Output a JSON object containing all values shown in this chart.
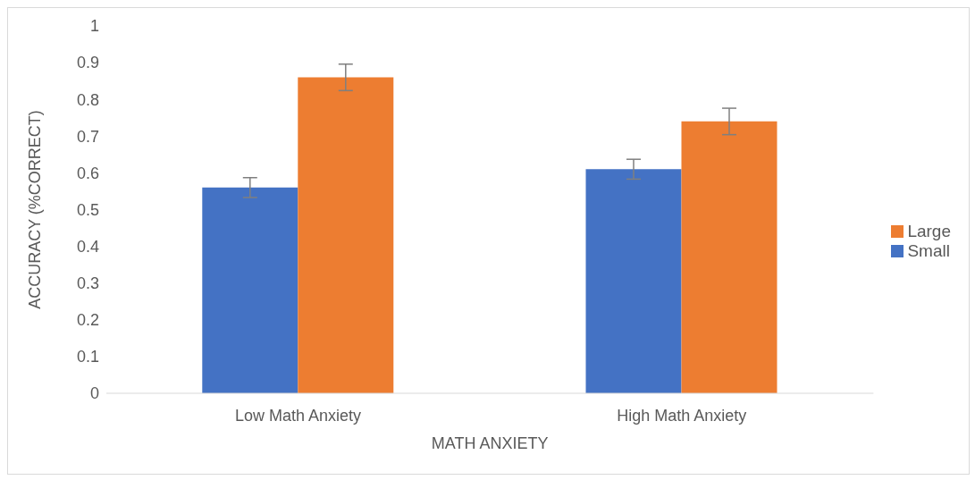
{
  "chart_data": {
    "type": "bar",
    "xlabel": "MATH ANXIETY",
    "ylabel": "ACCURACY (%CORRECT)",
    "categories": [
      "Low Math Anxiety",
      "High Math Anxiety"
    ],
    "series": [
      {
        "name": "Small",
        "color": "#4472c4",
        "values": [
          0.56,
          0.61
        ],
        "errors": [
          0.027,
          0.027
        ]
      },
      {
        "name": "Large",
        "color": "#ed7d31",
        "values": [
          0.86,
          0.74
        ],
        "errors": [
          0.036,
          0.036
        ]
      }
    ],
    "ylim": [
      0,
      1
    ],
    "yticks": [
      0,
      0.1,
      0.2,
      0.3,
      0.4,
      0.5,
      0.6,
      0.7,
      0.8,
      0.9,
      1
    ],
    "grid": false,
    "legend": "right"
  }
}
